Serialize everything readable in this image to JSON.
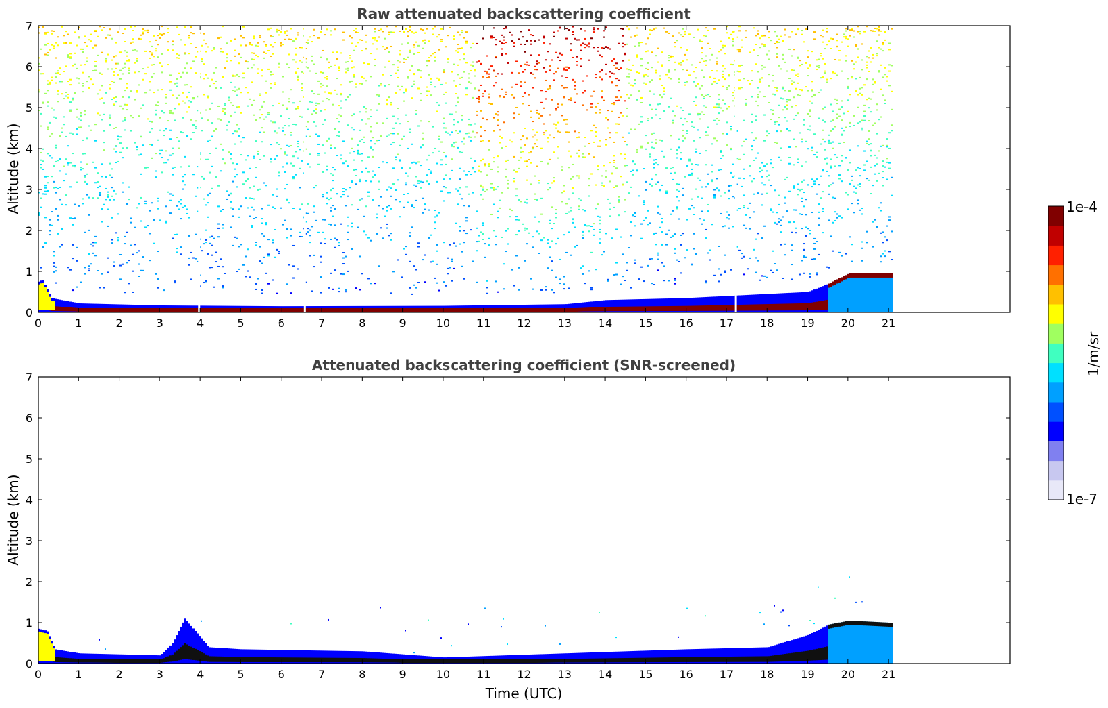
{
  "chart_data": [
    {
      "type": "heatmap",
      "title": "Raw attenuated backscattering coefficient",
      "xlabel": "",
      "ylabel": "Altitude (km)",
      "xlim": [
        0,
        24
      ],
      "ylim": [
        0,
        7
      ],
      "xticks": [
        "0",
        "1",
        "2",
        "3",
        "4",
        "5",
        "6",
        "7",
        "8",
        "9",
        "10",
        "11",
        "12",
        "13",
        "14",
        "15",
        "16",
        "17",
        "18",
        "19",
        "20",
        "21"
      ],
      "yticks": [
        "0",
        "1",
        "2",
        "3",
        "4",
        "5",
        "6",
        "7"
      ],
      "data_end_time": 21.15,
      "layer_top_km": [
        [
          0,
          0.75
        ],
        [
          0.1,
          0.8
        ],
        [
          0.3,
          0.35
        ],
        [
          1,
          0.22
        ],
        [
          3,
          0.17
        ],
        [
          6,
          0.15
        ],
        [
          10,
          0.16
        ],
        [
          13,
          0.2
        ],
        [
          14,
          0.3
        ],
        [
          16,
          0.35
        ],
        [
          17,
          0.4
        ],
        [
          18,
          0.45
        ],
        [
          19,
          0.5
        ],
        [
          19.5,
          0.7
        ],
        [
          20,
          0.95
        ],
        [
          21,
          0.95
        ]
      ],
      "noise_regions": [
        "mid-to-high altitude noise 0-21 UTC",
        "strong high-altitude signal near 11-14 UTC"
      ],
      "gap_times": [
        3.95,
        6.55,
        17.2
      ]
    },
    {
      "type": "heatmap",
      "title": "Attenuated backscattering coefficient (SNR-screened)",
      "xlabel": "Time (UTC)",
      "ylabel": "Altitude (km)",
      "xlim": [
        0,
        24
      ],
      "ylim": [
        0,
        7
      ],
      "xticks": [
        "0",
        "1",
        "2",
        "3",
        "4",
        "5",
        "6",
        "7",
        "8",
        "9",
        "10",
        "11",
        "12",
        "13",
        "14",
        "15",
        "16",
        "17",
        "18",
        "19",
        "20",
        "21"
      ],
      "yticks": [
        "0",
        "1",
        "2",
        "3",
        "4",
        "5",
        "6",
        "7"
      ],
      "data_end_time": 21.15,
      "layer_top_km": [
        [
          0,
          0.85
        ],
        [
          0.2,
          0.8
        ],
        [
          0.4,
          0.35
        ],
        [
          1,
          0.25
        ],
        [
          3,
          0.2
        ],
        [
          3.3,
          0.5
        ],
        [
          3.6,
          1.1
        ],
        [
          4.2,
          0.4
        ],
        [
          5,
          0.35
        ],
        [
          8,
          0.3
        ],
        [
          10,
          0.15
        ],
        [
          13,
          0.25
        ],
        [
          16,
          0.35
        ],
        [
          18,
          0.4
        ],
        [
          19,
          0.7
        ],
        [
          19.5,
          0.95
        ],
        [
          20,
          1.05
        ],
        [
          21,
          1.0
        ]
      ]
    }
  ],
  "colorbar": {
    "label": "1/m/sr",
    "max_label": "1e-4",
    "min_label": "1e-7",
    "scale": "log",
    "colormap": [
      "#e8e8f8",
      "#c8c8f0",
      "#8080f0",
      "#0000ff",
      "#0050ff",
      "#00a0ff",
      "#00e0ff",
      "#40ffc0",
      "#a0ff60",
      "#ffff00",
      "#ffc000",
      "#ff7000",
      "#ff2000",
      "#c00000",
      "#800000"
    ]
  }
}
